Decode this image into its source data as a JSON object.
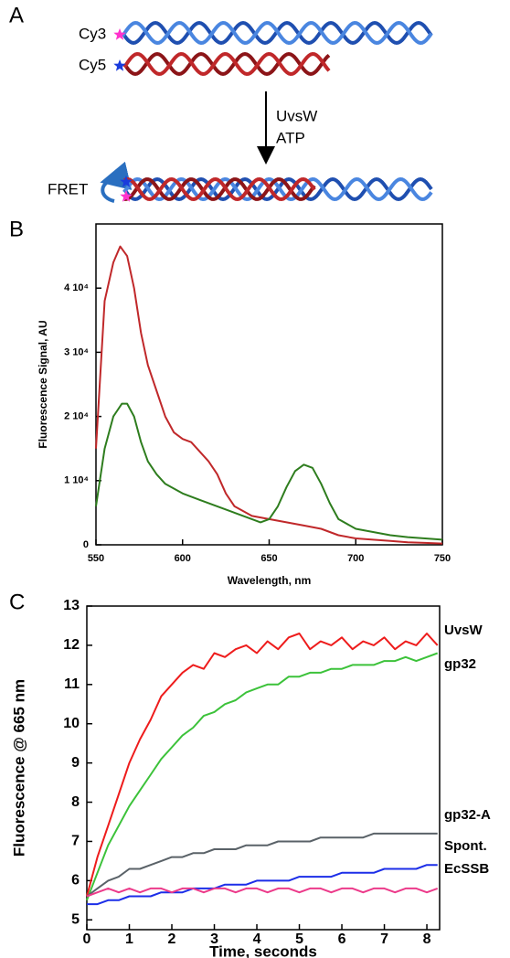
{
  "panel_labels": [
    "A",
    "B",
    "C"
  ],
  "diagram": {
    "top_label": "Cy3",
    "bottom_label": "Cy5",
    "reagents": [
      "UvsW",
      "ATP"
    ],
    "result_label": "FRET"
  },
  "chart_data": [
    {
      "type": "line",
      "ylabel": "Fluorescence Signal, AU",
      "xlabel": "Wavelength, nm",
      "xlim": [
        550,
        750
      ],
      "xticks": [
        550,
        600,
        650,
        700,
        750
      ],
      "ylim": [
        0,
        50000
      ],
      "yticks": [
        0,
        {
          "value": 10000,
          "label": "1 10⁴"
        },
        {
          "value": 20000,
          "label": "2 10⁴"
        },
        {
          "value": 30000,
          "label": "3 10⁴"
        },
        {
          "value": 40000,
          "label": "4 10⁴"
        }
      ],
      "series_x": [
        [
          550,
          555,
          560,
          564,
          568,
          572,
          576,
          580,
          585,
          590,
          595,
          600,
          605,
          610,
          615,
          620,
          625,
          630,
          640,
          650,
          660,
          670,
          680,
          690,
          700,
          710,
          720,
          730,
          740,
          750
        ],
        [
          550,
          555,
          560,
          565,
          568,
          572,
          576,
          580,
          585,
          590,
          600,
          610,
          620,
          630,
          640,
          645,
          650,
          655,
          660,
          665,
          670,
          675,
          680,
          685,
          690,
          700,
          710,
          720,
          730,
          740,
          750
        ]
      ],
      "series": [
        {
          "color": "#c0282a",
          "values": [
            15000,
            38000,
            44000,
            46500,
            45000,
            40000,
            33000,
            28000,
            24000,
            20000,
            17500,
            16500,
            16000,
            14500,
            13000,
            11000,
            8000,
            6000,
            4500,
            4000,
            3500,
            3000,
            2500,
            1500,
            1000,
            800,
            600,
            400,
            300,
            200
          ]
        },
        {
          "color": "#2e7d1e",
          "values": [
            6000,
            15000,
            20000,
            22000,
            22000,
            20000,
            16000,
            13000,
            11000,
            9500,
            8000,
            7000,
            6000,
            5000,
            4000,
            3500,
            4000,
            6000,
            9000,
            11500,
            12500,
            12000,
            9500,
            6500,
            4000,
            2500,
            2000,
            1500,
            1200,
            1000,
            800
          ]
        }
      ]
    },
    {
      "type": "line",
      "ylabel": "Fluorescence @ 665 nm",
      "xlabel": "Time, seconds",
      "xlim": [
        0,
        8.3
      ],
      "xticks": [
        0,
        1,
        2,
        3,
        4,
        5,
        6,
        7,
        8
      ],
      "ylim": [
        4.75,
        13
      ],
      "yticks": [
        5,
        6,
        7,
        8,
        9,
        10,
        11,
        12,
        13
      ],
      "x": [
        0,
        0.25,
        0.5,
        0.75,
        1,
        1.25,
        1.5,
        1.75,
        2,
        2.25,
        2.5,
        2.75,
        3,
        3.25,
        3.5,
        3.75,
        4,
        4.25,
        4.5,
        4.75,
        5,
        5.25,
        5.5,
        5.75,
        6,
        6.25,
        6.5,
        6.75,
        7,
        7.25,
        7.5,
        7.75,
        8,
        8.25
      ],
      "series": [
        {
          "name": "UvsW",
          "color": "#ee1c1c",
          "values": [
            5.6,
            6.6,
            7.4,
            8.2,
            9.0,
            9.6,
            10.1,
            10.7,
            11.0,
            11.3,
            11.5,
            11.4,
            11.8,
            11.7,
            11.9,
            12.0,
            11.8,
            12.1,
            11.9,
            12.2,
            12.3,
            11.9,
            12.1,
            12.0,
            12.2,
            11.9,
            12.1,
            12.0,
            12.2,
            11.9,
            12.1,
            12.0,
            12.3,
            12.0
          ]
        },
        {
          "name": "gp32",
          "color": "#3cc23a",
          "values": [
            5.5,
            6.2,
            6.9,
            7.4,
            7.9,
            8.3,
            8.7,
            9.1,
            9.4,
            9.7,
            9.9,
            10.2,
            10.3,
            10.5,
            10.6,
            10.8,
            10.9,
            11.0,
            11.0,
            11.2,
            11.2,
            11.3,
            11.3,
            11.4,
            11.4,
            11.5,
            11.5,
            11.5,
            11.6,
            11.6,
            11.7,
            11.6,
            11.7,
            11.8
          ]
        },
        {
          "name": "gp32-A",
          "color": "#5a6268",
          "values": [
            5.6,
            5.8,
            6.0,
            6.1,
            6.3,
            6.3,
            6.4,
            6.5,
            6.6,
            6.6,
            6.7,
            6.7,
            6.8,
            6.8,
            6.8,
            6.9,
            6.9,
            6.9,
            7.0,
            7.0,
            7.0,
            7.0,
            7.1,
            7.1,
            7.1,
            7.1,
            7.1,
            7.2,
            7.2,
            7.2,
            7.2,
            7.2,
            7.2,
            7.2
          ]
        },
        {
          "name": "Spont.",
          "color": "#1c2ee8",
          "values": [
            5.4,
            5.4,
            5.5,
            5.5,
            5.6,
            5.6,
            5.6,
            5.7,
            5.7,
            5.7,
            5.8,
            5.8,
            5.8,
            5.9,
            5.9,
            5.9,
            6.0,
            6.0,
            6.0,
            6.0,
            6.1,
            6.1,
            6.1,
            6.1,
            6.2,
            6.2,
            6.2,
            6.2,
            6.3,
            6.3,
            6.3,
            6.3,
            6.4,
            6.4
          ]
        },
        {
          "name": "EcSSB",
          "color": "#ec3a8a",
          "values": [
            5.6,
            5.7,
            5.8,
            5.7,
            5.8,
            5.7,
            5.8,
            5.8,
            5.7,
            5.8,
            5.8,
            5.7,
            5.8,
            5.8,
            5.7,
            5.8,
            5.8,
            5.7,
            5.8,
            5.8,
            5.7,
            5.8,
            5.8,
            5.7,
            5.8,
            5.8,
            5.7,
            5.8,
            5.8,
            5.7,
            5.8,
            5.8,
            5.7,
            5.8
          ]
        }
      ]
    }
  ]
}
